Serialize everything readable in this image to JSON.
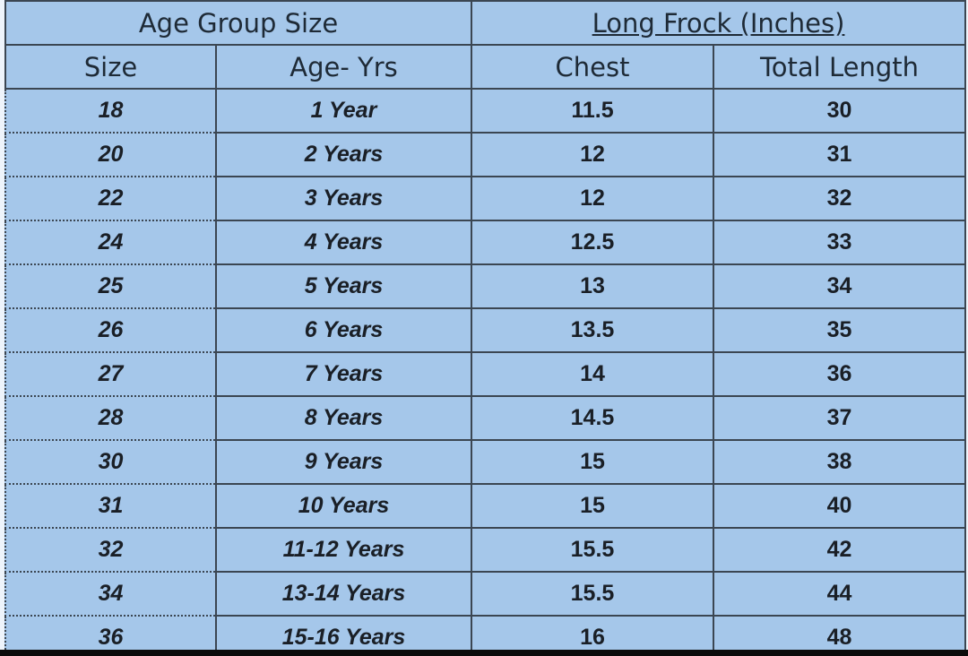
{
  "table": {
    "group_headers": [
      "Age Group Size",
      "Long Frock (Inches)"
    ],
    "columns": [
      "Size",
      "Age- Yrs",
      "Chest",
      "Total Length"
    ],
    "rows": [
      [
        "18",
        "1 Year",
        "11.5",
        "30"
      ],
      [
        "20",
        "2 Years",
        "12",
        "31"
      ],
      [
        "22",
        "3 Years",
        "12",
        "32"
      ],
      [
        "24",
        "4 Years",
        "12.5",
        "33"
      ],
      [
        "25",
        "5 Years",
        "13",
        "34"
      ],
      [
        "26",
        "6 Years",
        "13.5",
        "35"
      ],
      [
        "27",
        "7 Years",
        "14",
        "36"
      ],
      [
        "28",
        "8 Years",
        "14.5",
        "37"
      ],
      [
        "30",
        "9 Years",
        "15",
        "38"
      ],
      [
        "31",
        "10 Years",
        "15",
        "40"
      ],
      [
        "32",
        "11-12 Years",
        "15.5",
        "42"
      ],
      [
        "34",
        "13-14 Years",
        "15.5",
        "44"
      ],
      [
        "36",
        "15-16 Years",
        "16",
        "48"
      ]
    ]
  }
}
